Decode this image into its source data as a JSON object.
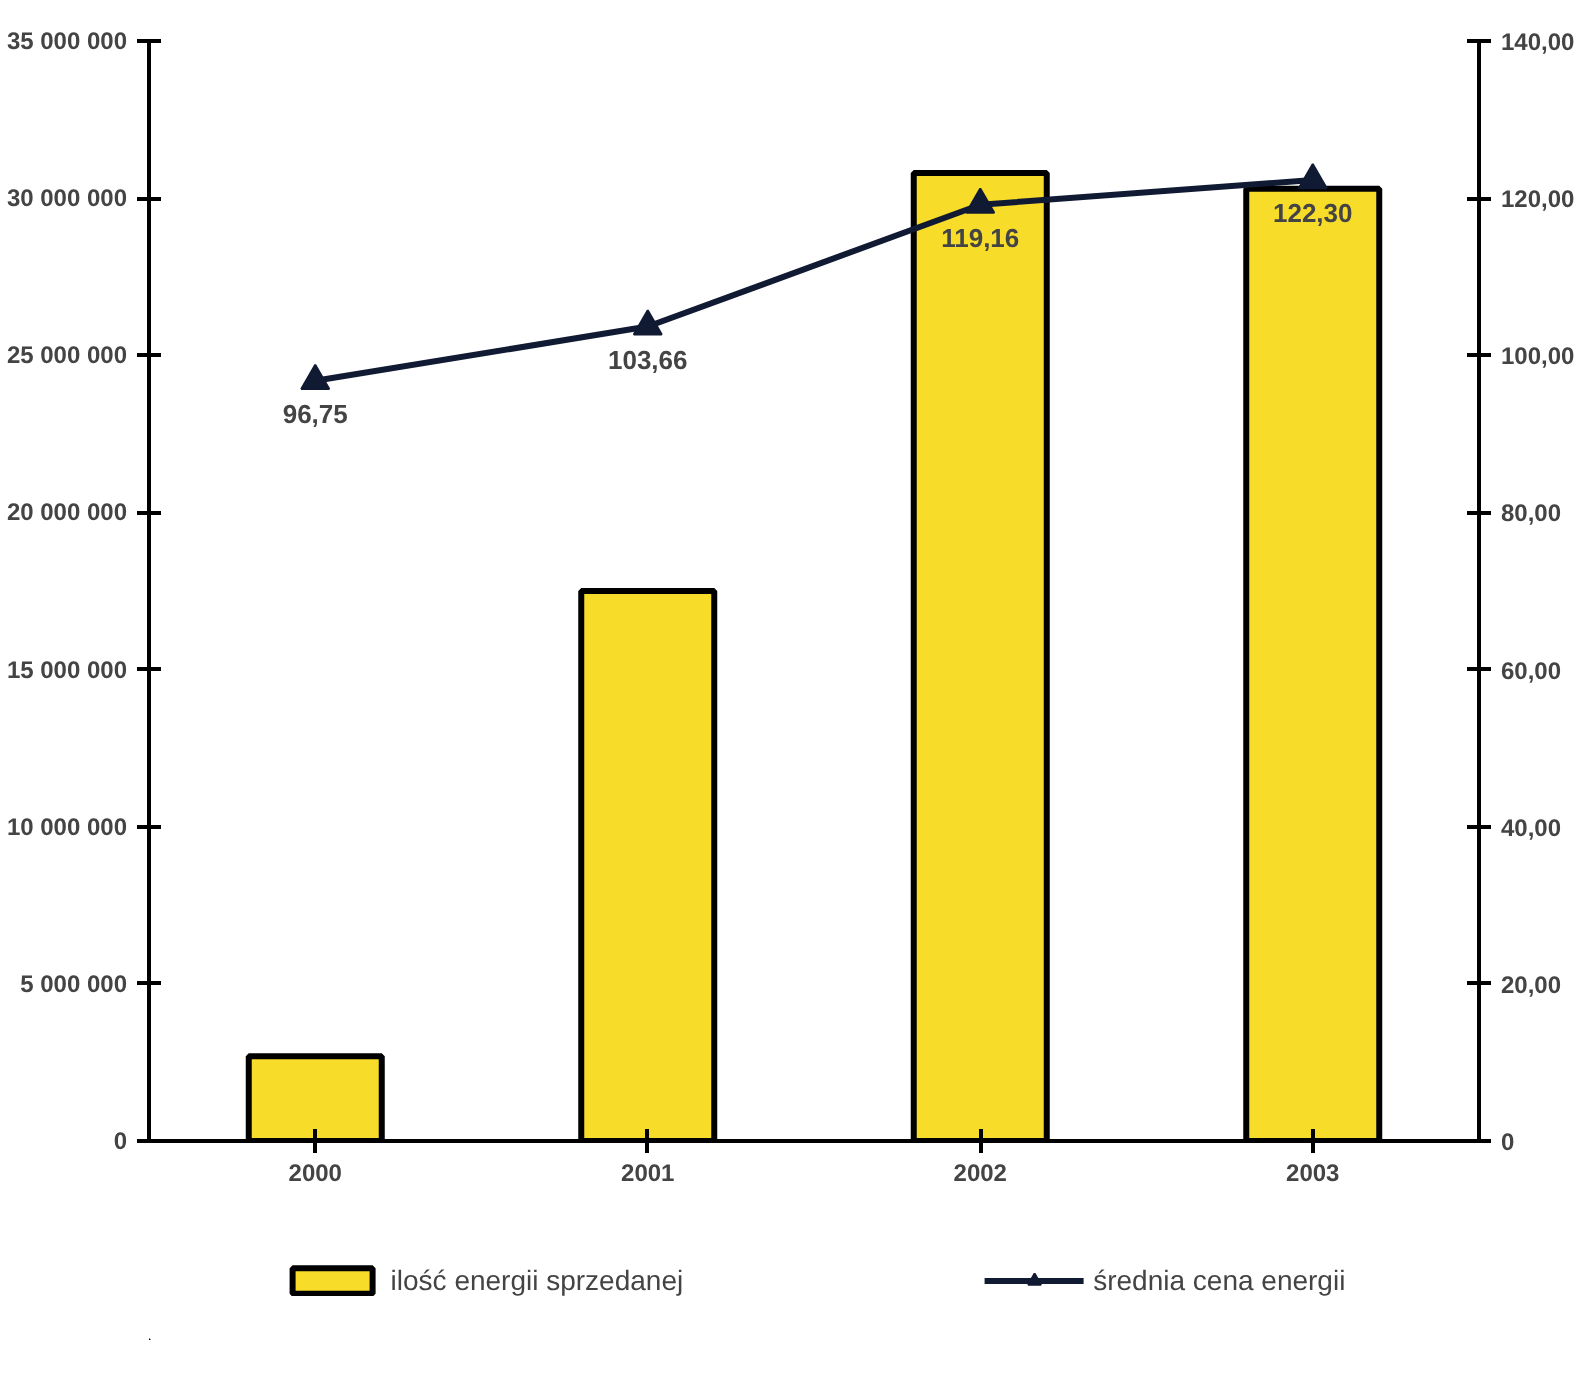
{
  "chart_data": {
    "type": "bar",
    "categories": [
      "2000",
      "2001",
      "2002",
      "2003"
    ],
    "series": [
      {
        "name": "ilość energii sprzedanej",
        "color": "#f7dc2a",
        "values": [
          2700000,
          17500000,
          30800000,
          30300000
        ]
      },
      {
        "name": "średnia cena energii",
        "type": "line",
        "axis": "y2",
        "color": "#111a33",
        "marker": "triangle",
        "values": [
          96.75,
          103.66,
          119.16,
          122.3
        ],
        "value_labels": [
          "96,75",
          "103,66",
          "119,16",
          "122,30"
        ]
      }
    ],
    "ylim": [
      0,
      35000000
    ],
    "yticks": [
      {
        "value": 0,
        "label": "0"
      },
      {
        "value": 5000000,
        "label": "5 000 000"
      },
      {
        "value": 10000000,
        "label": "10 000 000"
      },
      {
        "value": 15000000,
        "label": "15 000 000"
      },
      {
        "value": 20000000,
        "label": "20 000 000"
      },
      {
        "value": 25000000,
        "label": "25 000 000"
      },
      {
        "value": 30000000,
        "label": "30 000 000"
      },
      {
        "value": 35000000,
        "label": "35 000 000"
      }
    ],
    "y2lim": [
      0,
      140
    ],
    "y2ticks": [
      0,
      {
        "value": 20,
        "label": "20,00"
      },
      {
        "value": 40,
        "label": "40,00"
      },
      {
        "value": 60,
        "label": "60,00"
      },
      {
        "value": 80,
        "label": "80,00"
      },
      {
        "value": 100,
        "label": "100,00"
      },
      {
        "value": 120,
        "label": "120,00"
      },
      {
        "value": 140,
        "label": "140,00"
      }
    ],
    "legend": "bottom"
  }
}
